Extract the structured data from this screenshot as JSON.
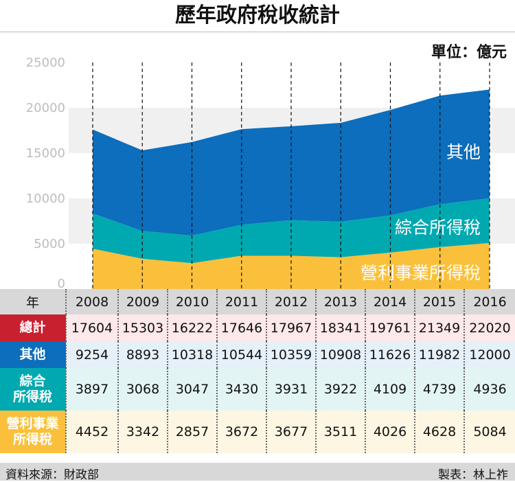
{
  "title": "歷年政府稅收統計",
  "unit": "單位：億元",
  "chart_data": {
    "type": "area",
    "stacked": true,
    "categories": [
      "2008",
      "2009",
      "2010",
      "2011",
      "2012",
      "2013",
      "2014",
      "2015",
      "2016"
    ],
    "ylim": [
      0,
      25000
    ],
    "yticks": [
      0,
      5000,
      10000,
      15000,
      20000,
      25000
    ],
    "series": [
      {
        "name": "營利事業所得稅",
        "color": "#fbc03b",
        "values": [
          4452,
          3342,
          2857,
          3672,
          3677,
          3511,
          4026,
          4628,
          5084
        ]
      },
      {
        "name": "綜合所得稅",
        "color": "#00a9b0",
        "values": [
          3897,
          3068,
          3047,
          3430,
          3931,
          3922,
          4109,
          4739,
          4936
        ]
      },
      {
        "name": "其他",
        "color": "#0c6ebc",
        "values": [
          9254,
          8893,
          10318,
          10544,
          10359,
          10908,
          11626,
          11982,
          12000
        ]
      }
    ],
    "totals": [
      17604,
      15303,
      16222,
      17646,
      17967,
      18341,
      19761,
      21349,
      22020
    ]
  },
  "table": {
    "year_header": "年",
    "rows": [
      {
        "key": "total",
        "label_lines": [
          "總計"
        ],
        "color": "#c8202f",
        "row_class": "row-total"
      },
      {
        "key": "other",
        "label_lines": [
          "其他"
        ],
        "color": "#0c6ebc",
        "row_class": "row-other"
      },
      {
        "key": "comp",
        "label_lines": [
          "綜合",
          "所得稅"
        ],
        "color": "#00a9b0",
        "row_class": "row-comp"
      },
      {
        "key": "corp",
        "label_lines": [
          "營利事業",
          "所得稅"
        ],
        "color": "#fbc03b",
        "row_class": "row-corp"
      }
    ]
  },
  "footer": {
    "source": "資料來源：財政部",
    "maker": "製表：林上祚"
  }
}
